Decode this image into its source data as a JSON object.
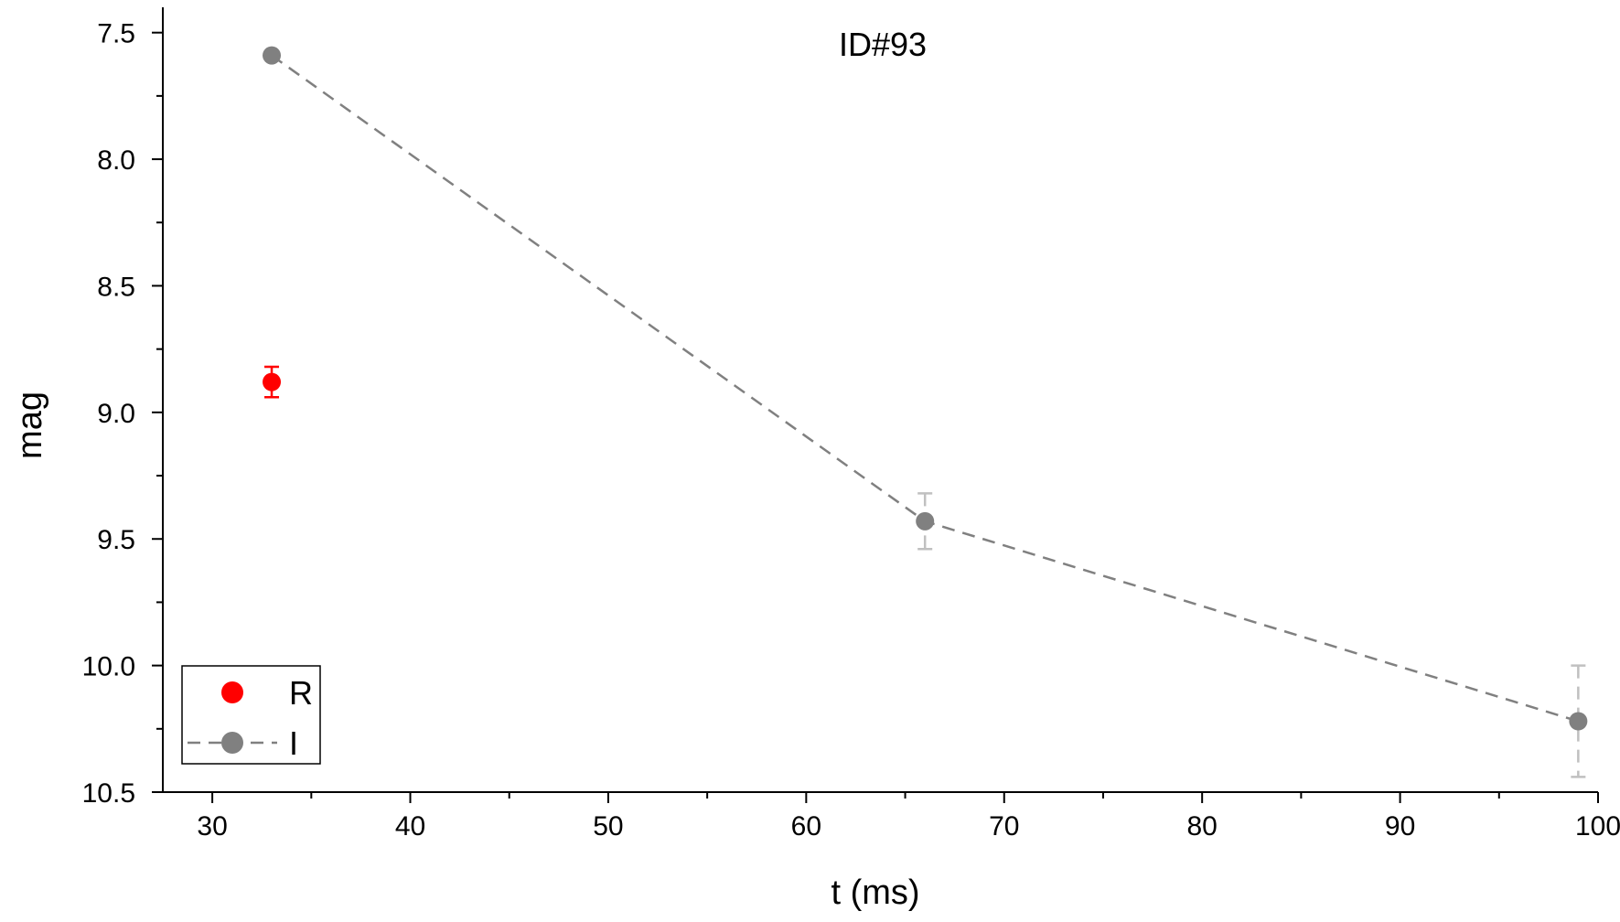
{
  "chart_data": {
    "type": "scatter",
    "title": "ID#93",
    "xlabel": "t (ms)",
    "ylabel": "mag",
    "xlim": [
      27.5,
      100
    ],
    "ylim": [
      10.5,
      7.4
    ],
    "y_inverted": true,
    "x_ticks": [
      30,
      40,
      50,
      60,
      70,
      80,
      90,
      100
    ],
    "x_tick_labels": [
      "30",
      "40",
      "50",
      "60",
      "70",
      "80",
      "90",
      "100"
    ],
    "x_minor_ticks": [
      35,
      45,
      55,
      65,
      75,
      85,
      95
    ],
    "y_ticks": [
      7.5,
      8.0,
      8.5,
      9.0,
      9.5,
      10.0,
      10.5
    ],
    "y_tick_labels": [
      "7.5",
      "8.0",
      "8.5",
      "9.0",
      "9.5",
      "10.0",
      "10.5"
    ],
    "y_minor_ticks": [
      7.75,
      8.25,
      8.75,
      9.25,
      9.75,
      10.25
    ],
    "grid": false,
    "legend_position": "bottom-left",
    "series": [
      {
        "name": "R",
        "color": "#ff0000",
        "error_color": "#ff0000",
        "line": "none",
        "points": [
          {
            "x": 33,
            "y": 8.88,
            "err": 0.06
          }
        ]
      },
      {
        "name": "I",
        "color": "#808080",
        "error_color": "#c0c0c0",
        "line": "dashed",
        "points": [
          {
            "x": 33,
            "y": 7.59,
            "err": 0.0
          },
          {
            "x": 66,
            "y": 9.43,
            "err": 0.11
          },
          {
            "x": 99,
            "y": 10.22,
            "err": 0.22
          }
        ]
      }
    ]
  }
}
